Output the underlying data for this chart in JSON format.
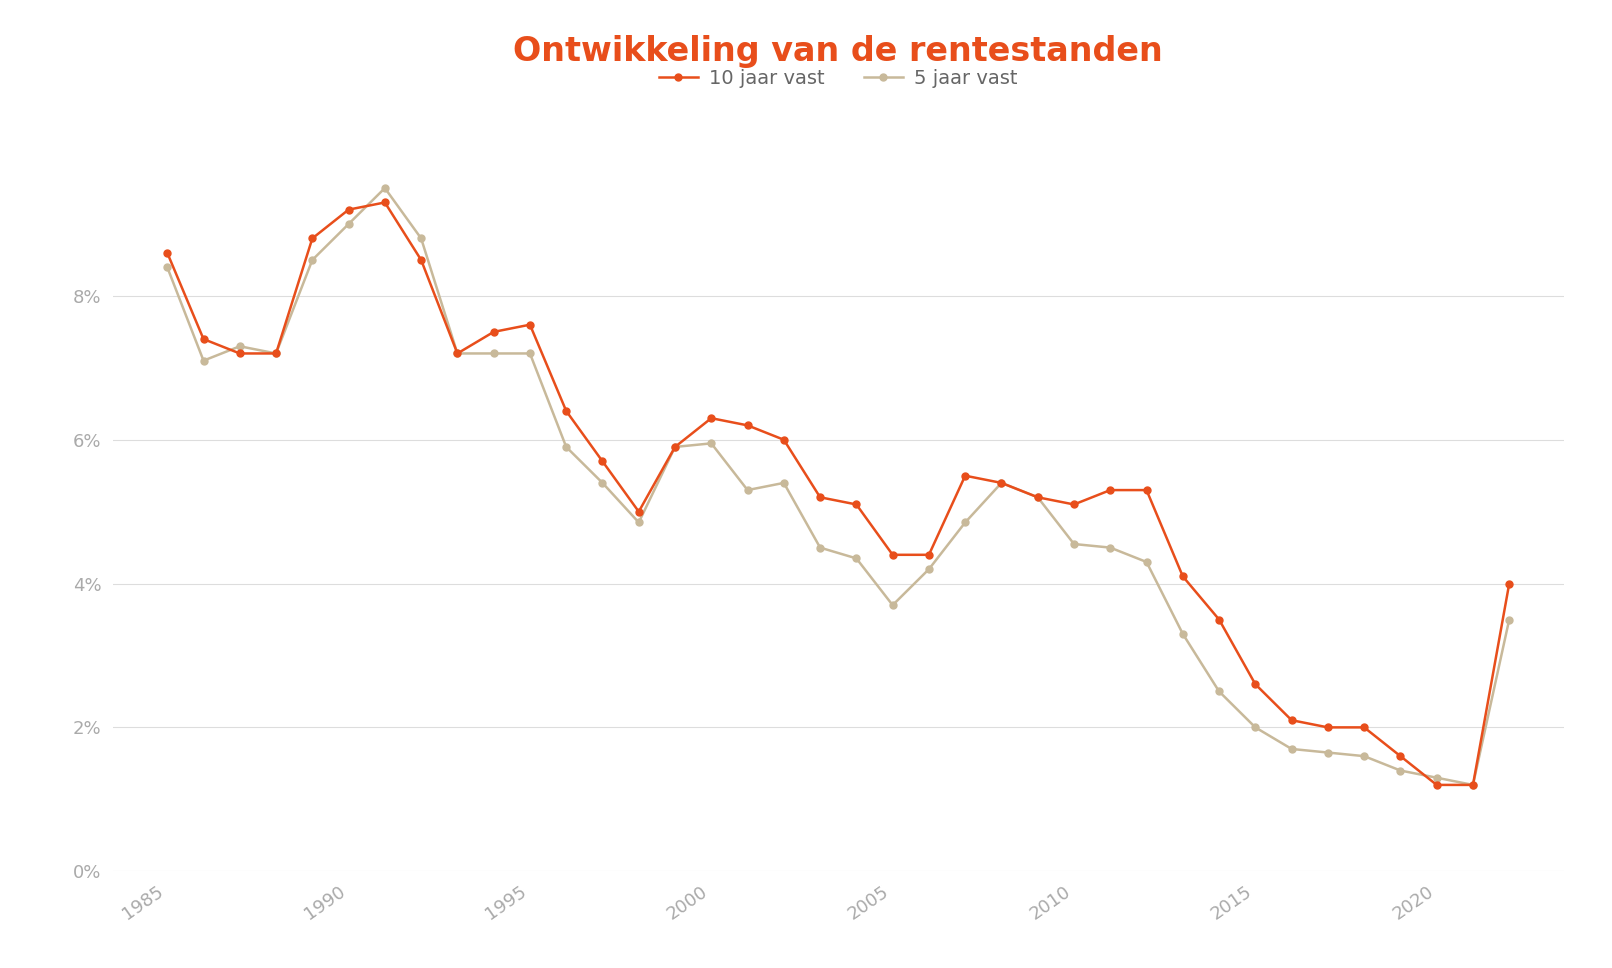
{
  "title": "Ontwikkeling van de rentestanden",
  "legend_10jaar": "10 jaar vast",
  "legend_5jaar": "5 jaar vast",
  "background_color": "#ffffff",
  "title_color": "#e84e1b",
  "line_color_10jaar": "#e84e1b",
  "line_color_5jaar": "#c8b99a",
  "years_10jaar": [
    1985,
    1986,
    1987,
    1988,
    1989,
    1990,
    1991,
    1992,
    1993,
    1994,
    1995,
    1996,
    1997,
    1998,
    1999,
    2000,
    2001,
    2002,
    2003,
    2004,
    2005,
    2006,
    2007,
    2008,
    2009,
    2010,
    2011,
    2012,
    2013,
    2014,
    2015,
    2016,
    2017,
    2018,
    2019,
    2020,
    2021,
    2022
  ],
  "values_10jaar": [
    8.6,
    7.4,
    7.2,
    7.2,
    8.8,
    9.2,
    9.3,
    8.5,
    7.2,
    7.5,
    7.6,
    6.4,
    5.7,
    5.0,
    5.9,
    6.3,
    6.2,
    6.0,
    5.2,
    5.1,
    4.4,
    4.4,
    5.5,
    5.4,
    5.2,
    5.1,
    5.3,
    5.3,
    4.1,
    3.5,
    2.6,
    2.1,
    2.0,
    2.0,
    1.6,
    1.2,
    1.2,
    4.0
  ],
  "years_5jaar": [
    1985,
    1986,
    1987,
    1988,
    1989,
    1990,
    1991,
    1992,
    1993,
    1994,
    1995,
    1996,
    1997,
    1998,
    1999,
    2000,
    2001,
    2002,
    2003,
    2004,
    2005,
    2006,
    2007,
    2008,
    2009,
    2010,
    2011,
    2012,
    2013,
    2014,
    2015,
    2016,
    2017,
    2018,
    2019,
    2020,
    2021,
    2022
  ],
  "values_5jaar": [
    8.4,
    7.1,
    7.3,
    7.2,
    8.5,
    9.0,
    9.5,
    8.8,
    7.2,
    7.2,
    7.2,
    5.9,
    5.4,
    4.85,
    5.9,
    5.95,
    5.3,
    5.4,
    4.5,
    4.35,
    3.7,
    4.2,
    4.85,
    5.4,
    5.2,
    4.55,
    4.5,
    4.3,
    3.3,
    2.5,
    2.0,
    1.7,
    1.65,
    1.6,
    1.4,
    1.3,
    1.2,
    3.5
  ],
  "ylim": [
    0,
    10.5
  ],
  "yticks": [
    0,
    2,
    4,
    6,
    8
  ],
  "xticks": [
    1985,
    1990,
    1995,
    2000,
    2005,
    2010,
    2015,
    2020
  ],
  "grid_color": "#dddddd",
  "marker_size": 5,
  "linewidth": 1.8,
  "tick_color": "#aaaaaa",
  "tick_fontsize": 13
}
